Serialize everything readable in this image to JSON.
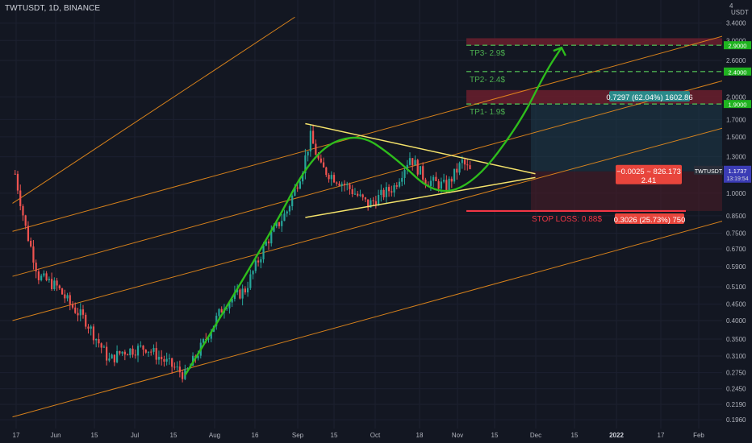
{
  "header": {
    "title": "TWTUSDT, 1D, BINANCE"
  },
  "axis": {
    "currency": "USDT",
    "top_tick": "4"
  },
  "price_axis_ticks": [
    "3.4000",
    "3.0000",
    "2.6000",
    "2.0000",
    "1.7000",
    "1.5000",
    "1.3000",
    "1.0000",
    "0.8500",
    "0.7500",
    "0.6700",
    "0.5900",
    "0.5100",
    "0.4500",
    "0.4000",
    "0.3500",
    "0.3100",
    "0.2750",
    "0.2450",
    "0.2190",
    "0.1960"
  ],
  "date_axis_ticks": [
    "17",
    "Jun",
    "15",
    "Jul",
    "15",
    "Aug",
    "16",
    "Sep",
    "15",
    "Oct",
    "18",
    "Nov",
    "15",
    "Dec",
    "15",
    "2022",
    "17",
    "Feb"
  ],
  "targets": [
    {
      "label": "TP3- 2.9$",
      "price_tag": "2.9000"
    },
    {
      "label": "TP2- 2.4$",
      "price_tag": "2.4000"
    },
    {
      "label": "TP1- 1.9$",
      "price_tag": "1.9000"
    }
  ],
  "stop_loss": {
    "label": "STOP LOSS: 0.88$"
  },
  "position": {
    "profit_label": "0.7297 (62.04%) 1602.86",
    "risk_label": "0.3026 (25.73%) 750",
    "center_line1": "−0.0025 ~ 826.173",
    "center_line2": "2.41"
  },
  "current": {
    "symbol": "TWTUSDT",
    "price": "1.1737",
    "countdown": "13:19:54"
  },
  "colors": {
    "bg": "#131722",
    "up": "#26a69a",
    "down": "#ef5350",
    "channel": "#f7931a",
    "triangle": "#f5e36b",
    "projection": "#2ebd1c",
    "target": "#4caf50",
    "stop": "#f23645"
  },
  "chart_data": {
    "type": "candlestick",
    "title": "TWTUSDT, 1D, BINANCE",
    "y_scale": "log",
    "ylim": [
      0.196,
      4
    ],
    "x_start": "2021-05-15",
    "x_end": "2022-02-12",
    "ohlc_sample": [
      {
        "t": "2021-05-16",
        "c": 1.15
      },
      {
        "t": "2021-05-20",
        "c": 0.78
      },
      {
        "t": "2021-05-25",
        "c": 0.55
      },
      {
        "t": "2021-06-01",
        "c": 0.51
      },
      {
        "t": "2021-06-06",
        "c": 0.45
      },
      {
        "t": "2021-06-12",
        "c": 0.4
      },
      {
        "t": "2021-06-21",
        "c": 0.3
      },
      {
        "t": "2021-06-26",
        "c": 0.32
      },
      {
        "t": "2021-07-05",
        "c": 0.33
      },
      {
        "t": "2021-07-12",
        "c": 0.3
      },
      {
        "t": "2021-07-20",
        "c": 0.27
      },
      {
        "t": "2021-07-27",
        "c": 0.34
      },
      {
        "t": "2021-08-04",
        "c": 0.45
      },
      {
        "t": "2021-08-12",
        "c": 0.5
      },
      {
        "t": "2021-08-20",
        "c": 0.7
      },
      {
        "t": "2021-08-28",
        "c": 0.88
      },
      {
        "t": "2021-09-03",
        "c": 1.2
      },
      {
        "t": "2021-09-06",
        "c": 1.5
      },
      {
        "t": "2021-09-10",
        "c": 1.2
      },
      {
        "t": "2021-09-20",
        "c": 1.05
      },
      {
        "t": "2021-09-28",
        "c": 0.92
      },
      {
        "t": "2021-10-08",
        "c": 1.05
      },
      {
        "t": "2021-10-14",
        "c": 1.3
      },
      {
        "t": "2021-10-20",
        "c": 1.1
      },
      {
        "t": "2021-10-28",
        "c": 1.05
      },
      {
        "t": "2021-11-03",
        "c": 1.25
      },
      {
        "t": "2021-11-06",
        "c": 1.17
      }
    ],
    "annotations": {
      "triangle": {
        "upper": [
          [
            "2021-09-04",
            1.65
          ],
          [
            "2021-12-01",
            1.15
          ]
        ],
        "lower": [
          [
            "2021-09-04",
            0.84
          ],
          [
            "2021-12-01",
            1.12
          ]
        ]
      },
      "targets": [
        2.9,
        2.4,
        1.9
      ],
      "stop_loss": 0.88,
      "entry": 1.17
    }
  }
}
